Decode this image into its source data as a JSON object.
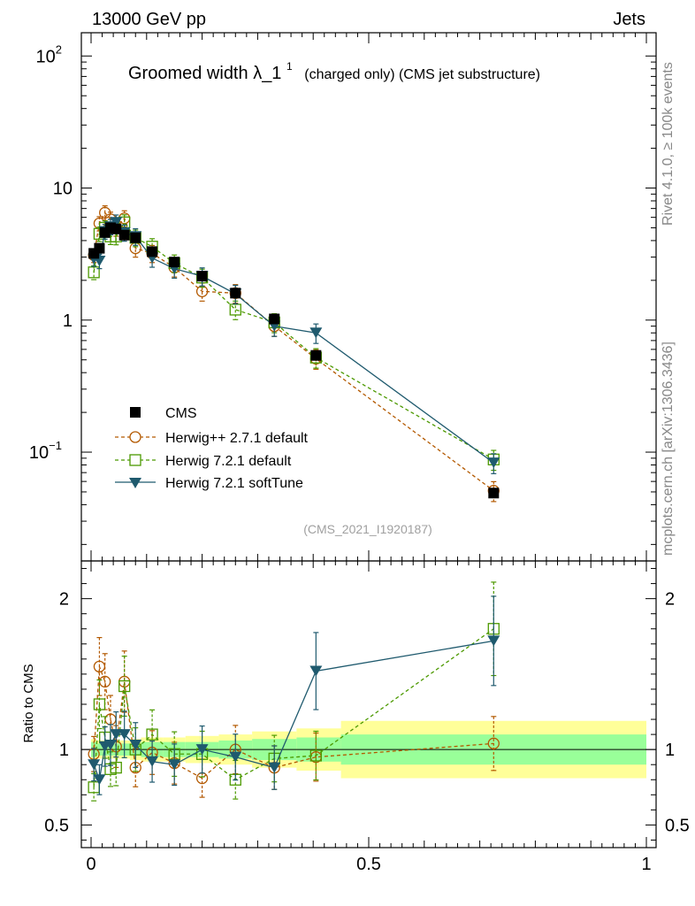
{
  "header": {
    "left_label": "13000 GeV pp",
    "right_label": "Jets"
  },
  "side_labels": {
    "rivet": "Rivet 4.1.0, ≥ 100k events",
    "mcplots": "mcplots.cern.ch [arXiv:1306.3436]"
  },
  "analysis_id": "(CMS_2021_I1920187)",
  "colors": {
    "cms": "#000000",
    "herwigpp": "#b35900",
    "herwig721": "#4c9900",
    "softtune": "#1f5a6e",
    "band_inner": "#99ff99",
    "band_outer": "#ffff99"
  },
  "chart_data": [
    {
      "type": "line",
      "scale": "log",
      "title": "Groomed width",
      "title_symbol": "λ_1",
      "title_superscript": "1",
      "title_suffix": "(charged only) (CMS jet substructure)",
      "xlabel": "",
      "ylabel": "",
      "xlim": [
        0,
        1
      ],
      "ylim": [
        0.015,
        150
      ],
      "y_ticks": [
        {
          "value": 100,
          "base": "10",
          "exp": "2"
        },
        {
          "value": 10,
          "base": "10",
          "exp": ""
        },
        {
          "value": 1,
          "base": "1",
          "exp": ""
        },
        {
          "value": 0.1,
          "base": "10",
          "exp": "−1"
        }
      ],
      "legend_position": "middle-left",
      "x": [
        0.005,
        0.015,
        0.025,
        0.035,
        0.045,
        0.06,
        0.08,
        0.11,
        0.15,
        0.2,
        0.26,
        0.33,
        0.405,
        0.725
      ],
      "series": [
        {
          "name": "CMS",
          "style": "data",
          "values": [
            3.2,
            3.5,
            4.6,
            5.0,
            4.9,
            4.4,
            4.2,
            3.3,
            2.75,
            2.15,
            1.6,
            1.02,
            0.54,
            0.049
          ]
        },
        {
          "name": "Herwig++ 2.7.1 default",
          "style": "circle-dashed",
          "values": [
            3.1,
            5.4,
            6.5,
            5.8,
            5.0,
            5.9,
            3.5,
            3.2,
            2.5,
            1.65,
            1.6,
            0.9,
            0.51,
            0.051
          ]
        },
        {
          "name": "Herwig 7.2.1 default",
          "style": "square-dashed",
          "values": [
            2.3,
            4.5,
            5.0,
            4.3,
            4.3,
            5.5,
            4.2,
            3.6,
            2.7,
            2.1,
            1.2,
            0.96,
            0.52,
            0.088
          ]
        },
        {
          "name": "Herwig 7.2.1 softTune",
          "style": "triangle-solid",
          "values": [
            2.9,
            2.8,
            4.7,
            5.1,
            5.5,
            4.6,
            4.3,
            2.95,
            2.45,
            2.15,
            1.58,
            0.9,
            0.8,
            0.083
          ]
        }
      ]
    },
    {
      "type": "line",
      "scale": "linear",
      "ylabel": "Ratio to CMS",
      "xlim": [
        0,
        1
      ],
      "ylim": [
        0.35,
        2.25
      ],
      "y_ticks": [
        "0.5",
        "1",
        "2"
      ],
      "x_ticks": [
        "0",
        "0.5",
        "1"
      ],
      "x": [
        0.005,
        0.015,
        0.025,
        0.035,
        0.045,
        0.06,
        0.08,
        0.11,
        0.15,
        0.2,
        0.26,
        0.33,
        0.405,
        0.725
      ],
      "series": [
        {
          "name": "Herwig++ 2.7.1 default",
          "style": "circle-dashed",
          "values": [
            0.97,
            1.55,
            1.45,
            1.2,
            1.02,
            1.45,
            0.88,
            0.98,
            0.91,
            0.81,
            1.0,
            0.88,
            0.95,
            1.04
          ]
        },
        {
          "name": "Herwig 7.2.1 default",
          "style": "square-dashed",
          "values": [
            0.75,
            1.3,
            1.08,
            0.87,
            0.88,
            1.42,
            1.0,
            1.1,
            0.97,
            0.97,
            0.8,
            0.94,
            0.96,
            1.8
          ]
        },
        {
          "name": "Herwig 7.2.1 softTune",
          "style": "triangle-solid",
          "values": [
            0.9,
            0.8,
            1.02,
            1.03,
            1.1,
            1.1,
            1.03,
            0.92,
            0.9,
            1.0,
            0.95,
            0.88,
            1.52,
            1.72
          ]
        }
      ],
      "band_edges": [
        0,
        0.01,
        0.02,
        0.03,
        0.04,
        0.05,
        0.07,
        0.09,
        0.13,
        0.17,
        0.23,
        0.29,
        0.37,
        0.45,
        1.0
      ],
      "band_inner": [
        0.05,
        0.04,
        0.04,
        0.04,
        0.04,
        0.04,
        0.04,
        0.05,
        0.05,
        0.05,
        0.06,
        0.07,
        0.08,
        0.1
      ],
      "band_outer": [
        0.07,
        0.06,
        0.06,
        0.06,
        0.06,
        0.06,
        0.07,
        0.08,
        0.08,
        0.09,
        0.1,
        0.12,
        0.14,
        0.19
      ]
    }
  ]
}
